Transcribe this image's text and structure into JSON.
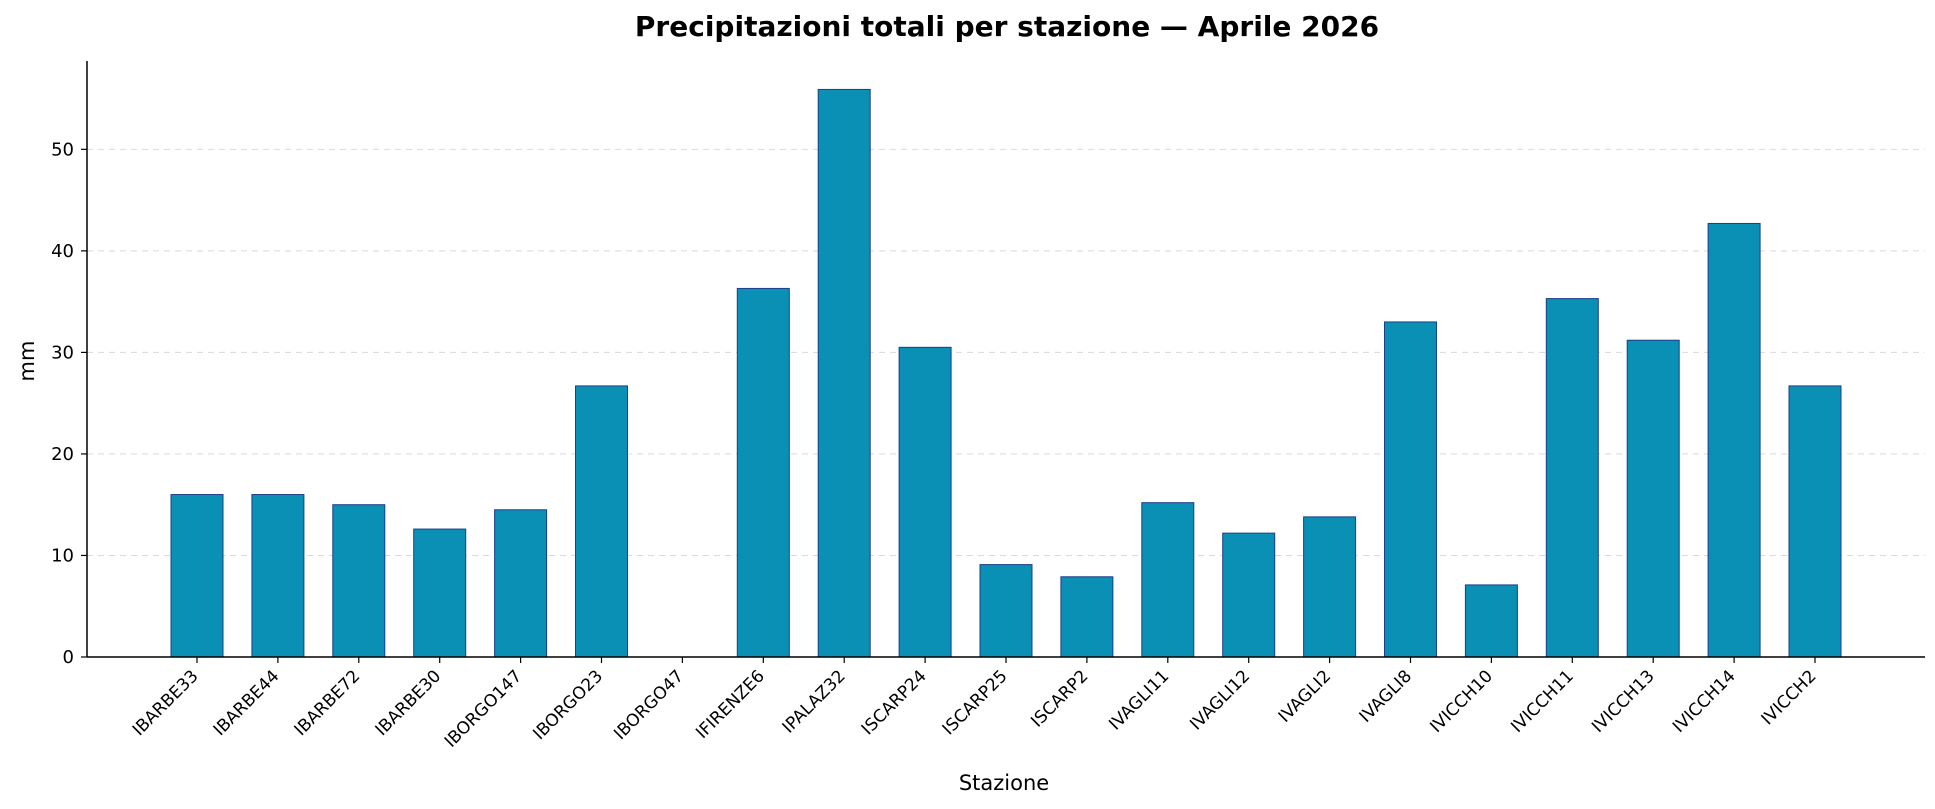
{
  "chart_data": {
    "type": "bar",
    "title": "Precipitazioni totali per stazione — Aprile 2026",
    "xlabel": "Stazione",
    "ylabel": "mm",
    "categories": [
      "IBARBE33",
      "IBARBE44",
      "IBARBE72",
      "IBARBE30",
      "IBORGO147",
      "IBORGO23",
      "IBORGO47",
      "IFIRENZE6",
      "IPALAZ32",
      "ISCARP24",
      "ISCARP25",
      "ISCARP2",
      "IVAGLI11",
      "IVAGLI12",
      "IVAGLI2",
      "IVAGLI8",
      "IVICCH10",
      "IVICCH11",
      "IVICCH13",
      "IVICCH14",
      "IVICCH2"
    ],
    "values": [
      16.0,
      16.0,
      15.0,
      12.6,
      14.5,
      26.7,
      0,
      36.3,
      55.9,
      30.5,
      9.1,
      7.9,
      15.2,
      12.2,
      13.8,
      33.0,
      7.1,
      35.3,
      31.2,
      42.7,
      26.7
    ],
    "ylim": [
      0,
      58.7
    ],
    "yticks": [
      0,
      10,
      20,
      30,
      40,
      50
    ],
    "grid": "y-dashed",
    "bar_color": "#0a8fb5",
    "edge_color": "#1b3f8b",
    "spines": "left-bottom"
  }
}
